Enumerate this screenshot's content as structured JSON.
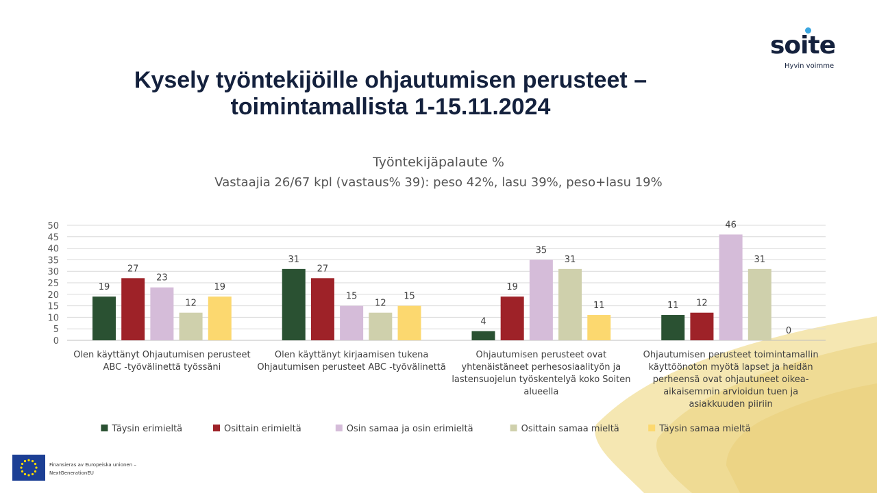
{
  "slide": {
    "title_line1": "Kysely työntekijöille ohjautumisen perusteet –",
    "title_line2": "toimintamallista 1-15.11.2024"
  },
  "logo": {
    "name": "soite",
    "tagline": "Hyvin voimme"
  },
  "footer": {
    "eu_line1": "Finansieras av Europeiska unionen –",
    "eu_line2": "NextGenerationEU"
  },
  "chart_data": {
    "type": "bar",
    "title": "Työntekijäpalaute %",
    "subtitle": "Vastaajia 26/67 kpl (vastaus% 39): peso 42%, lasu 39%, peso+lasu 19%",
    "ylim": [
      0,
      50
    ],
    "yticks": [
      0,
      5,
      10,
      15,
      20,
      25,
      30,
      35,
      40,
      45,
      50
    ],
    "grid": true,
    "legend_position": "bottom",
    "categories": [
      [
        "Olen käyttänyt Ohjautumisen perusteet",
        "ABC -työvälinettä työssäni"
      ],
      [
        "Olen käyttänyt kirjaamisen tukena",
        "Ohjautumisen perusteet ABC -työvälinettä"
      ],
      [
        "Ohjautumisen perusteet ovat",
        "yhtenäistäneet perhesosiaalityön ja",
        "lastensuojelun työskentelyä koko Soiten",
        "alueella"
      ],
      [
        "Ohjautumisen perusteet toimintamallin",
        "käyttöönoton myötä lapset ja heidän",
        "perheensä ovat ohjautuneet oikea-",
        "aikaisemmin arvioidun tuen ja",
        "asiakkuuden piiriin"
      ]
    ],
    "series": [
      {
        "name": "Täysin erimieltä",
        "color": "#2a5132",
        "values": [
          19,
          31,
          4,
          11
        ]
      },
      {
        "name": "Osittain erimieltä",
        "color": "#9e2228",
        "values": [
          27,
          27,
          19,
          12
        ]
      },
      {
        "name": "Osin samaa ja osin erimieltä",
        "color": "#d5bcd9",
        "values": [
          23,
          15,
          35,
          46
        ]
      },
      {
        "name": "Osittain samaa mieltä",
        "color": "#cfd0ac",
        "values": [
          12,
          12,
          31,
          31
        ]
      },
      {
        "name": "Täysin samaa mieltä",
        "color": "#fcd86f",
        "values": [
          19,
          15,
          11,
          0
        ]
      }
    ]
  }
}
